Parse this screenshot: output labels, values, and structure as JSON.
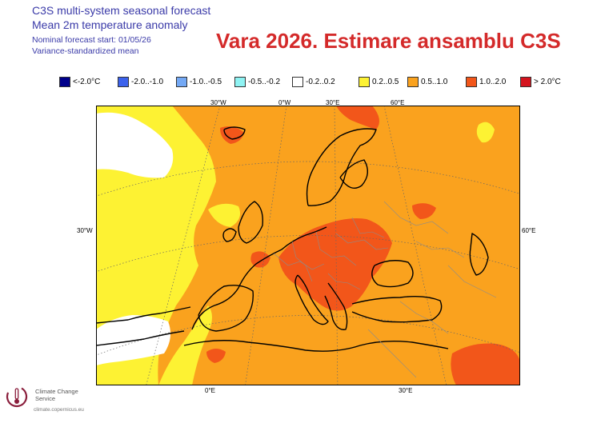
{
  "header": {
    "line1": "C3S multi-system seasonal forecast",
    "line2": "Mean 2m temperature anomaly",
    "line3": "Nominal forecast start: 01/05/26",
    "line4": "Variance-standardized mean"
  },
  "overlay_title": "Vara 2026. Estimare ansamblu C3S",
  "legend": [
    {
      "label": "<-2.0°C",
      "color": "#00008b"
    },
    {
      "label": "-2.0..-1.0",
      "color": "#3c62ec"
    },
    {
      "label": "-1.0..-0.5",
      "color": "#74a9f5"
    },
    {
      "label": "-0.5..-0.2",
      "color": "#8ff3f3"
    },
    {
      "label": "-0.2..0.2",
      "color": "#ffffff"
    },
    {
      "label": "0.2..0.5",
      "color": "#fdf233"
    },
    {
      "label": "0.5..1.0",
      "color": "#faa21e"
    },
    {
      "label": "1.0..2.0",
      "color": "#f2561a"
    },
    {
      "label": "> 2.0°C",
      "color": "#d4141e"
    }
  ],
  "map": {
    "top_labels": [
      "30°W",
      "0°W",
      "30°E",
      "60°E"
    ],
    "bottom_labels": [
      "0°E",
      "30°E"
    ],
    "left_label": "30°W",
    "right_label": "60°E",
    "colors": {
      "orange": "#faa21e",
      "dark_orange": "#f2561a",
      "yellow": "#fdf233",
      "white": "#ffffff",
      "coast": "#000000",
      "border": "#8c8c8c"
    }
  },
  "footer": {
    "org_name": "Climate Change Service",
    "url": "climate.copernicus.eu"
  }
}
